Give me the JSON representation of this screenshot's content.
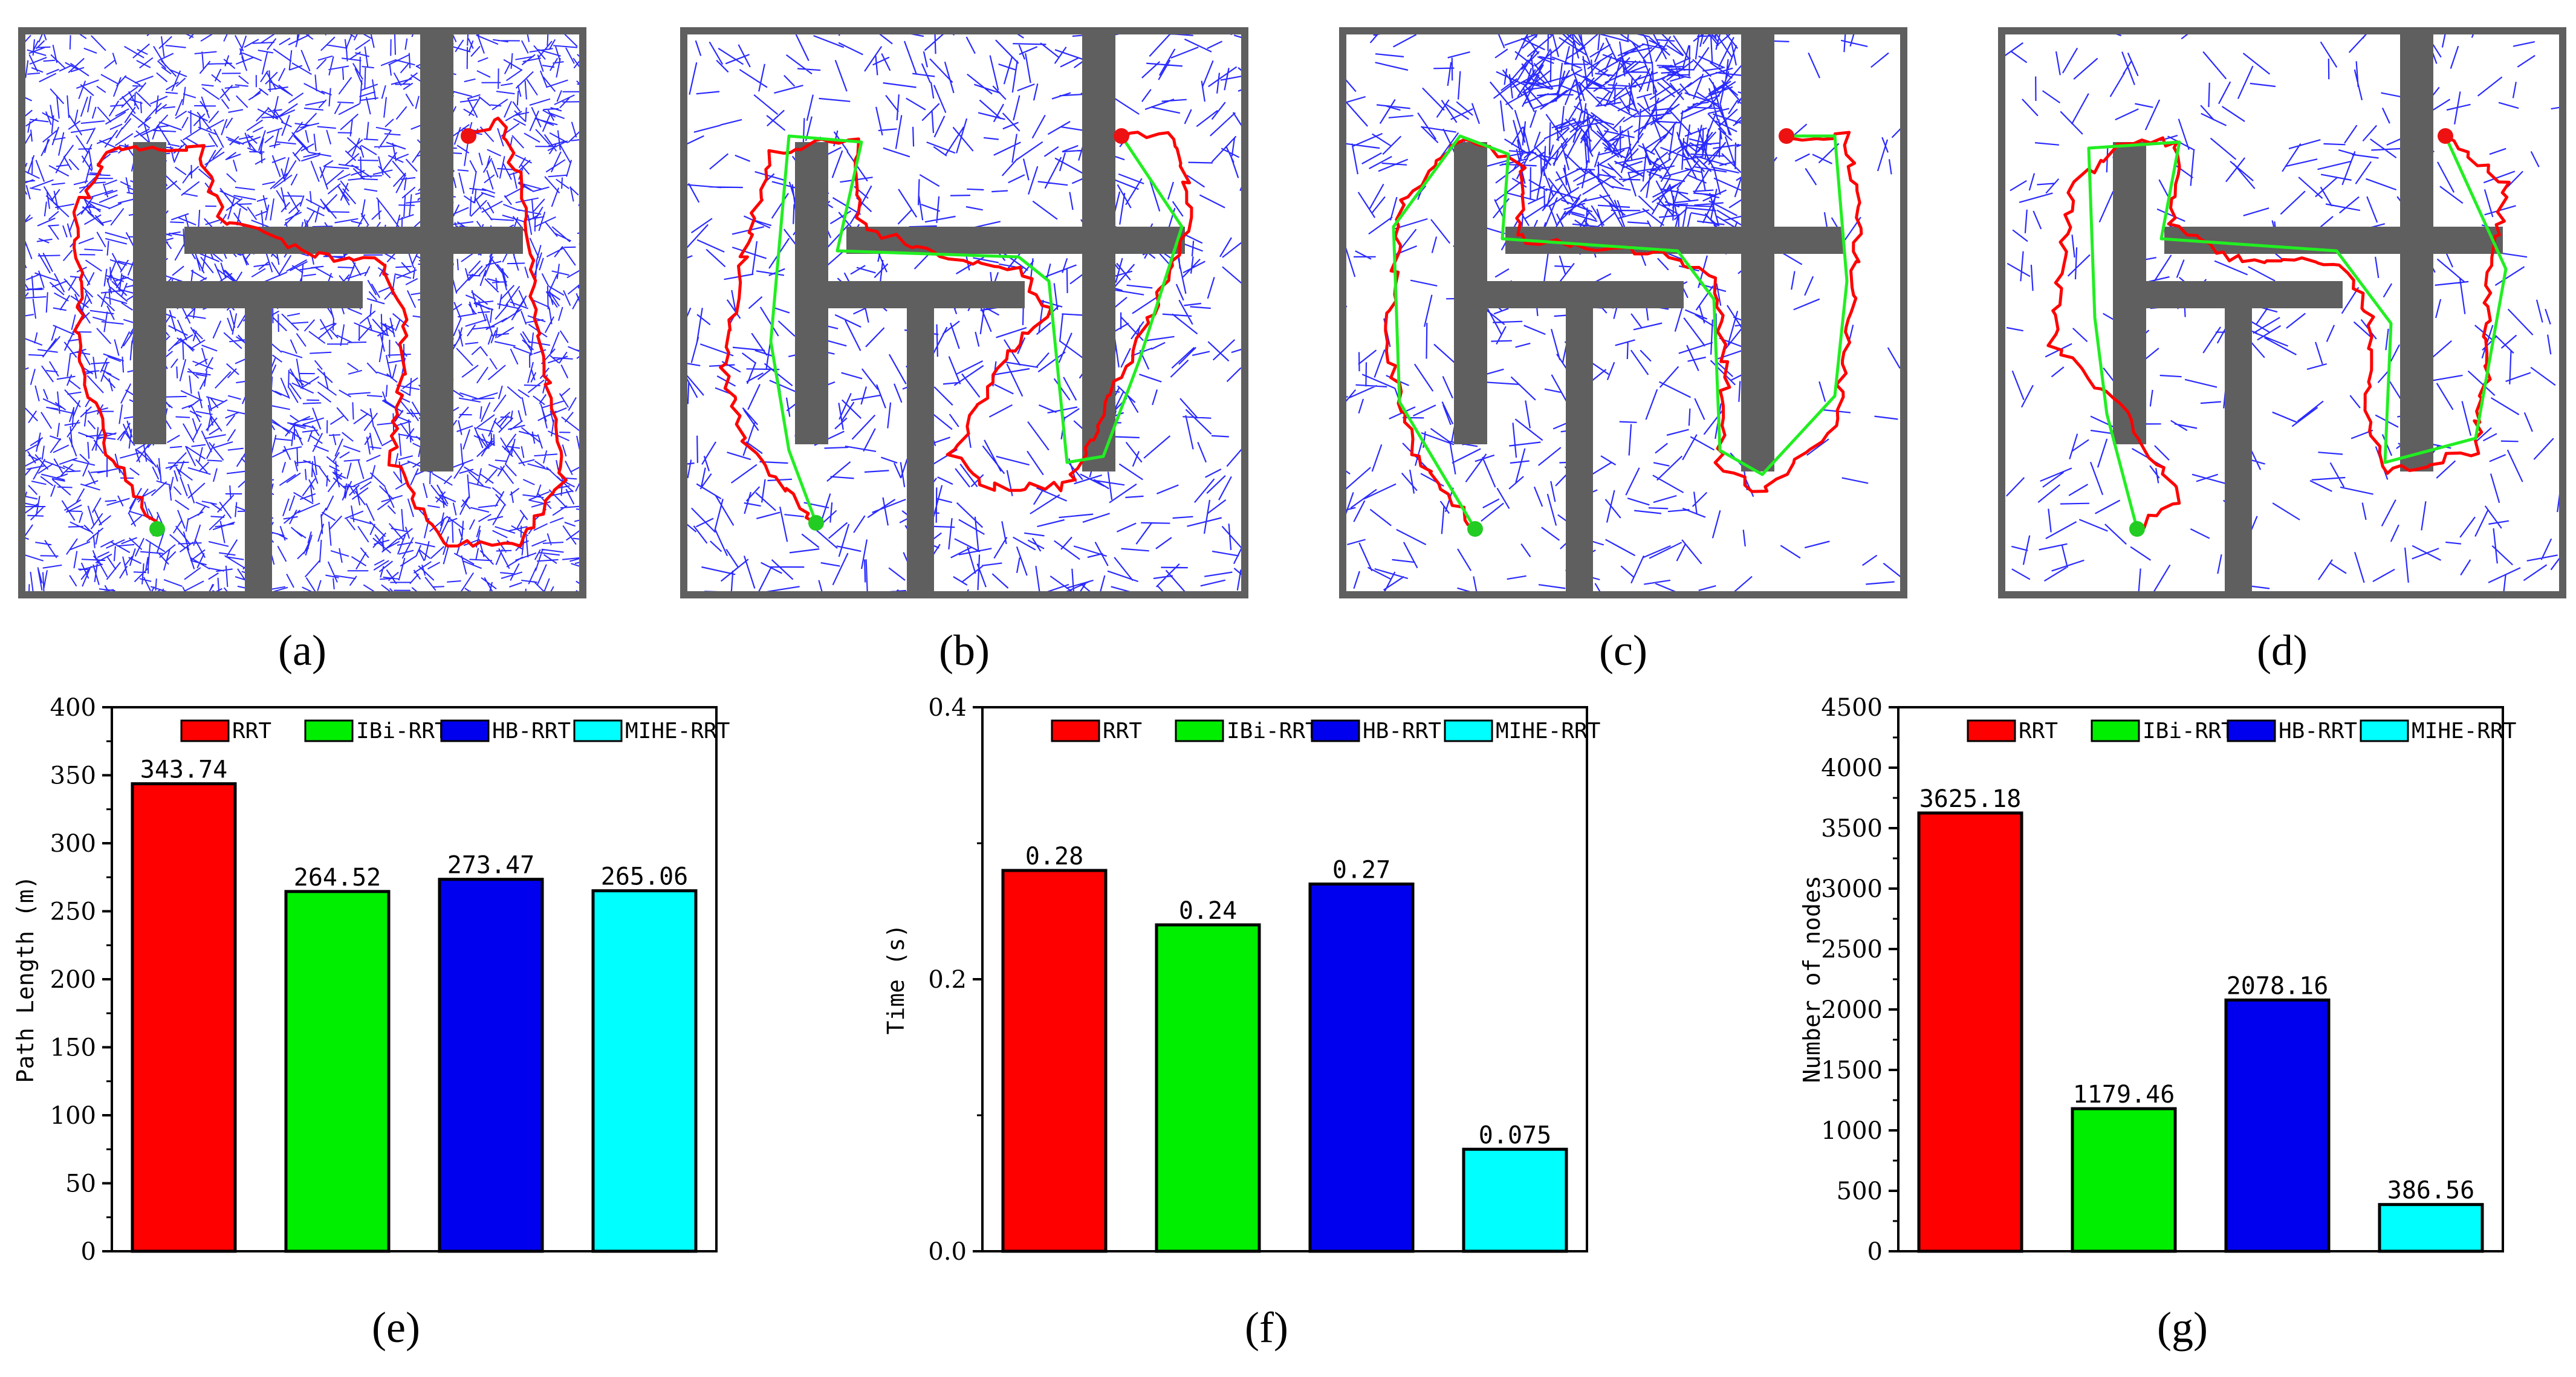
{
  "panels": [
    {
      "caption": "(a)",
      "tree": "dense",
      "obstacles": "A"
    },
    {
      "caption": "(b)",
      "tree": "medium",
      "obstacles": "A"
    },
    {
      "caption": "(c)",
      "tree": "half",
      "obstacles": "A"
    },
    {
      "caption": "(d)",
      "tree": "sparse",
      "obstacles": "A"
    }
  ],
  "colors": {
    "tree": "#2a2aff",
    "rrt_path": "#ff0000",
    "opt_path": "#22ee22",
    "obstacle": "#5f5f5f",
    "start": "#22cc22",
    "goal": "#ee1111"
  },
  "legend": [
    "RRT",
    "IBi-RRT",
    "HB-RRT",
    "MIHE-RRT"
  ],
  "series_colors": [
    "#ff0000",
    "#00ee00",
    "#0000ee",
    "#00ffff"
  ],
  "chart_data": [
    {
      "type": "bar",
      "caption": "(e)",
      "ylabel": "Path Length (m)",
      "categories": [
        "RRT",
        "IBi-RRT",
        "HB-RRT",
        "MIHE-RRT"
      ],
      "values": [
        343.74,
        264.52,
        273.47,
        265.06
      ],
      "labels": [
        "343.74",
        "264.52",
        "273.47",
        "265.06"
      ],
      "ylim": [
        0,
        400
      ],
      "yticks": [
        "0",
        "50",
        "100",
        "150",
        "200",
        "250",
        "300",
        "350",
        "400"
      ],
      "ytick_values": [
        0,
        50,
        100,
        150,
        200,
        250,
        300,
        350,
        400
      ],
      "legend": "top-center"
    },
    {
      "type": "bar",
      "caption": "(f)",
      "ylabel": "Time (s)",
      "categories": [
        "RRT",
        "IBi-RRT",
        "HB-RRT",
        "MIHE-RRT"
      ],
      "values": [
        0.28,
        0.24,
        0.27,
        0.075
      ],
      "labels": [
        "0.28",
        "0.24",
        "0.27",
        "0.075"
      ],
      "ylim": [
        0,
        0.4
      ],
      "yticks": [
        "0.0",
        "0.2",
        "0.4"
      ],
      "ytick_values": [
        0,
        0.2,
        0.4
      ],
      "legend": "top-center"
    },
    {
      "type": "bar",
      "caption": "(g)",
      "ylabel": "Number of nodes",
      "categories": [
        "RRT",
        "IBi-RRT",
        "HB-RRT",
        "MIHE-RRT"
      ],
      "values": [
        3625.18,
        1179.46,
        2078.16,
        386.56
      ],
      "labels": [
        "3625.18",
        "1179.46",
        "2078.16",
        "386.56"
      ],
      "ylim": [
        0,
        4500
      ],
      "yticks": [
        "0",
        "500",
        "1000",
        "1500",
        "2000",
        "2500",
        "3000",
        "3500",
        "4000",
        "4500"
      ],
      "ytick_values": [
        0,
        500,
        1000,
        1500,
        2000,
        2500,
        3000,
        3500,
        4000,
        4500
      ],
      "legend": "top-center"
    }
  ]
}
